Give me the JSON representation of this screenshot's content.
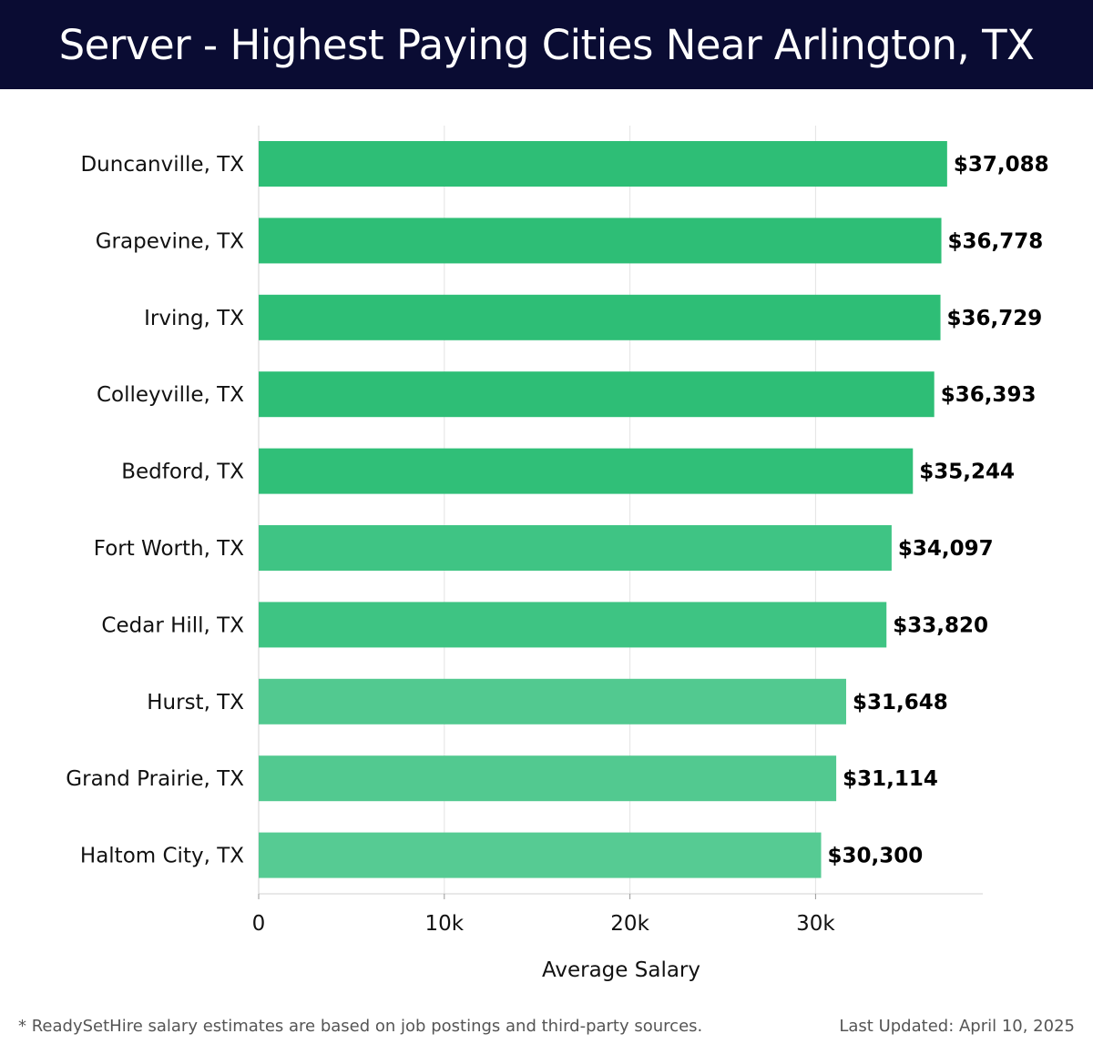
{
  "title": "Server - Highest Paying Cities Near Arlington, TX",
  "chart_data": {
    "type": "bar",
    "orientation": "horizontal",
    "title": "Server - Highest Paying Cities Near Arlington, TX",
    "xlabel": "Average Salary",
    "ylabel": "",
    "xlim": [
      0,
      39000
    ],
    "xticks": [
      0,
      10000,
      20000,
      30000
    ],
    "xtick_labels": [
      "0",
      "10k",
      "20k",
      "30k"
    ],
    "grid": true,
    "categories": [
      "Duncanville, TX",
      "Grapevine, TX",
      "Irving, TX",
      "Colleyville, TX",
      "Bedford, TX",
      "Fort Worth, TX",
      "Cedar Hill, TX",
      "Hurst, TX",
      "Grand Prairie, TX",
      "Haltom City, TX"
    ],
    "values": [
      37088,
      36778,
      36729,
      36393,
      35244,
      34097,
      33820,
      31648,
      31114,
      30300
    ],
    "value_labels": [
      "$37,088",
      "$36,778",
      "$36,729",
      "$36,393",
      "$35,244",
      "$34,097",
      "$33,820",
      "$31,648",
      "$31,114",
      "$30,300"
    ],
    "bar_colors": [
      "#2ebe76",
      "#2ebe76",
      "#2ebe76",
      "#2ebe76",
      "#30bf78",
      "#3fc484",
      "#3ec483",
      "#52c990",
      "#52c990",
      "#56cb93"
    ]
  },
  "footer": {
    "note": "* ReadySetHire salary estimates are based on job postings and third-party sources.",
    "updated": "Last Updated: April 10, 2025"
  }
}
